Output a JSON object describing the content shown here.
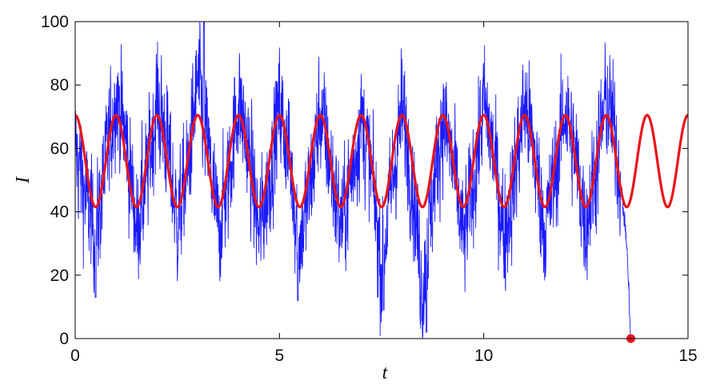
{
  "chart_data": {
    "type": "line",
    "title": "",
    "xlabel": "t",
    "ylabel": "I",
    "xlim": [
      0,
      15
    ],
    "ylim": [
      0,
      100
    ],
    "x_ticks": [
      0,
      5,
      10,
      15
    ],
    "x_tick_labels": [
      "0",
      "5",
      "10",
      "15"
    ],
    "y_ticks": [
      0,
      20,
      40,
      60,
      80,
      100
    ],
    "y_tick_labels": [
      "0",
      "20",
      "40",
      "60",
      "80",
      "100"
    ],
    "grid": false,
    "legend": "none",
    "series": [
      {
        "color": "#1a1aff",
        "style": "thin noisy line (stochastic trajectory)",
        "t_end": 13.6,
        "dt": 0.005,
        "x_sampled": [
          0,
          0.25,
          0.5,
          0.75,
          1.0,
          1.25,
          1.5,
          1.75,
          2.0,
          2.25,
          2.5,
          2.75,
          3.0,
          3.25,
          3.5,
          3.75,
          4.0,
          4.25,
          4.5,
          4.75,
          5.0,
          5.25,
          5.5,
          5.75,
          6.0,
          6.25,
          6.5,
          6.75,
          7.0,
          7.25,
          7.5,
          7.75,
          8.0,
          8.25,
          8.5,
          8.75,
          9.0,
          9.25,
          9.5,
          9.75,
          10.0,
          10.25,
          10.5,
          10.75,
          11.0,
          11.25,
          11.5,
          11.75,
          12.0,
          12.25,
          12.5,
          12.75,
          13.0,
          13.25,
          13.5,
          13.6
        ],
        "values_sampled": [
          60,
          45,
          32,
          55,
          78,
          62,
          35,
          50,
          75,
          62,
          36,
          52,
          82,
          60,
          34,
          50,
          76,
          58,
          33,
          50,
          74,
          56,
          30,
          48,
          72,
          55,
          35,
          50,
          70,
          52,
          22,
          48,
          72,
          50,
          15,
          45,
          70,
          55,
          30,
          50,
          74,
          58,
          32,
          50,
          75,
          58,
          34,
          52,
          74,
          56,
          36,
          55,
          76,
          62,
          30,
          0
        ],
        "extreme_points": [
          {
            "x": 3.15,
            "y": 100
          },
          {
            "x": 8.6,
            "y": 2
          },
          {
            "x": 7.55,
            "y": 9
          },
          {
            "x": 0.5,
            "y": 13
          },
          {
            "x": 5.45,
            "y": 12
          }
        ]
      },
      {
        "color": "#e8141b",
        "style": "thick smooth line",
        "function": "56 + 14.5*cos(2*pi*t)",
        "x_range": [
          0,
          15
        ],
        "max": 70.5,
        "min": 41.5,
        "period": 1
      }
    ],
    "markers": [
      {
        "x": 13.6,
        "y": 0,
        "color": "#e8141b",
        "shape": "filled-circle"
      }
    ]
  }
}
